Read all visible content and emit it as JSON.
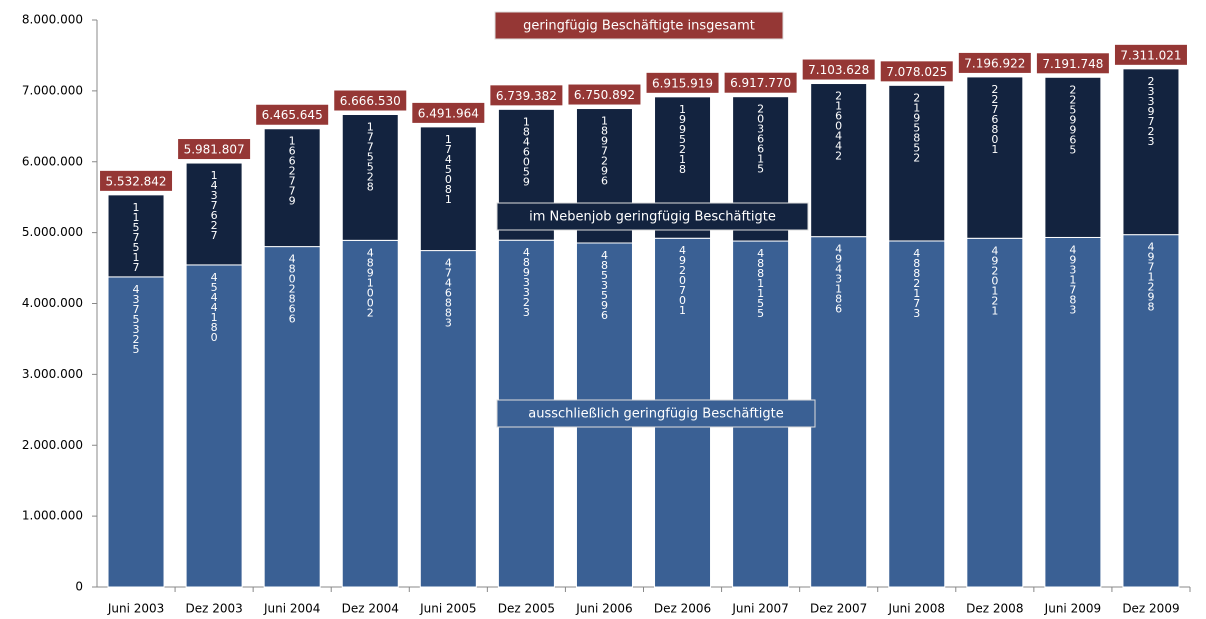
{
  "chart_data": {
    "type": "stacked-bar",
    "categories": [
      "Juni 2003",
      "Dez 2003",
      "Juni 2004",
      "Dez 2004",
      "Juni 2005",
      "Dez 2005",
      "Juni 2006",
      "Dez 2006",
      "Juni 2007",
      "Dez 2007",
      "Juni 2008",
      "Dez 2008",
      "Juni 2009",
      "Dez 2009"
    ],
    "series": [
      {
        "name": "ausschließlich geringfügig Beschäftigte",
        "color": "#3a6094",
        "values": [
          4375325,
          4544180,
          4802866,
          4891002,
          4746883,
          4893323,
          4853596,
          4920701,
          4881155,
          4943186,
          4882173,
          4920121,
          4931783,
          4971298
        ]
      },
      {
        "name": "im Nebenjob geringfügig Beschäftigte",
        "color": "#13233f",
        "values": [
          1157517,
          1437627,
          1662779,
          1775528,
          1745081,
          1846059,
          1897296,
          1995218,
          2036615,
          2160442,
          2195852,
          2276801,
          2259965,
          2339723
        ]
      }
    ],
    "totals": {
      "name": "geringfügig Beschäftigte insgesamt",
      "color": "#953735",
      "values": [
        5532842,
        5981807,
        6465645,
        6666530,
        6491964,
        6739382,
        6750892,
        6915919,
        6917770,
        7103628,
        7078025,
        7196922,
        7191748,
        7311021
      ],
      "value_labels": [
        "5.532.842",
        "5.981.807",
        "6.465.645",
        "6.666.530",
        "6.491.964",
        "6.739.382",
        "6.750.892",
        "6.915.919",
        "6.917.770",
        "7.103.628",
        "7.078.025",
        "7.196.922",
        "7.191.748",
        "7.311.021"
      ]
    },
    "ylim": [
      0,
      8000000
    ],
    "yticks": [
      0,
      {
        "value": 1000000,
        "label": "1.000.000"
      },
      {
        "value": 2000000,
        "label": "2.000.000"
      },
      {
        "value": 3000000,
        "label": "3.000.000"
      },
      {
        "value": 4000000,
        "label": "4.000.000"
      },
      {
        "value": 5000000,
        "label": "5.000.000"
      },
      {
        "value": 6000000,
        "label": "6.000.000"
      },
      {
        "value": 7000000,
        "label": "7.000.000"
      },
      {
        "value": 8000000,
        "label": "8.000.000"
      }
    ]
  }
}
